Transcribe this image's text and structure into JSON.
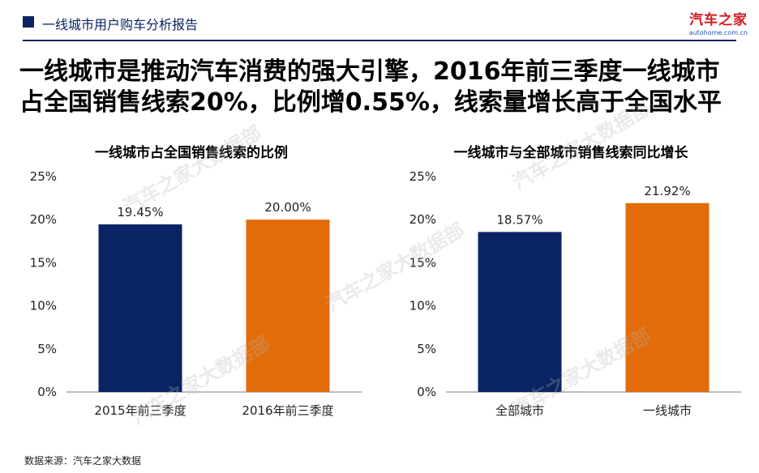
{
  "header": {
    "title": "一线城市用户购车分析报告",
    "logo_cn": "汽车之家",
    "logo_en": "autohome.com.cn"
  },
  "headline": {
    "line1": "一线城市是推动汽车消费的强大引擎，2016年前三季度一线城市",
    "line2": "占全国销售线索20%，比例增0.55%，线索量增长高于全国水平"
  },
  "watermark": "汽车之家大数据部",
  "source": "数据来源：汽车之家大数据",
  "colors": {
    "navy": "#0a2463",
    "orange": "#e36c0a",
    "axis": "#7f7f7f",
    "header": "#0a2463"
  },
  "chart_data": [
    {
      "type": "bar",
      "title": "一线城市占全国销售线索的比例",
      "categories": [
        "2015年前三季度",
        "2016年前三季度"
      ],
      "values": [
        19.45,
        20.0
      ],
      "value_labels": [
        "19.45%",
        "20.00%"
      ],
      "bar_colors": [
        "#0a2463",
        "#e36c0a"
      ],
      "yticks": [
        "25%",
        "20%",
        "15%",
        "10%",
        "5%",
        "0%"
      ],
      "ylim": [
        0,
        25
      ],
      "grid": false
    },
    {
      "type": "bar",
      "title": "一线城市与全部城市销售线索同比增长",
      "categories": [
        "全部城市",
        "一线城市"
      ],
      "values": [
        18.57,
        21.92
      ],
      "value_labels": [
        "18.57%",
        "21.92%"
      ],
      "bar_colors": [
        "#0a2463",
        "#e36c0a"
      ],
      "yticks": [
        "25%",
        "20%",
        "15%",
        "10%",
        "5%",
        "0%"
      ],
      "ylim": [
        0,
        25
      ],
      "grid": false
    }
  ]
}
